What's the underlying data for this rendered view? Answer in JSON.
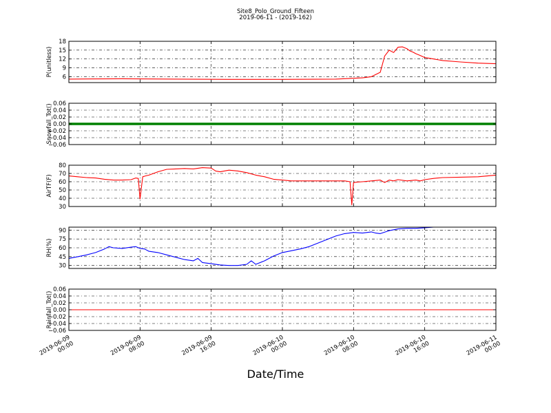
{
  "figure": {
    "title": "Site8_Polo_Ground_Fifteen",
    "subtitle": "2019-06-11 - (2019-162)",
    "xlabel": "Date/Time"
  },
  "chart_data": [
    {
      "type": "line",
      "ylabel": "P(unitless)",
      "ylim": [
        4,
        18
      ],
      "yticks": [
        "6",
        "9",
        "12",
        "15",
        "18"
      ],
      "ytick_values": [
        6,
        9,
        12,
        15,
        18
      ],
      "grid": true,
      "color": "#ff0000",
      "series": [
        {
          "x": [
            0,
            6,
            12,
            18,
            24,
            30,
            33,
            34,
            35,
            35.5,
            36,
            36.5,
            37,
            37.5,
            38,
            38.3,
            38.7,
            39,
            39.5,
            40,
            41,
            42,
            44,
            46,
            48
          ],
          "y": [
            5.2,
            5.3,
            5.2,
            5.1,
            5.1,
            5.2,
            5.6,
            6.0,
            7.5,
            13.0,
            15.0,
            14.2,
            16.0,
            16.1,
            15.5,
            14.8,
            14.3,
            13.8,
            13.2,
            12.5,
            12.0,
            11.5,
            11.0,
            10.6,
            10.4
          ]
        }
      ]
    },
    {
      "type": "line",
      "ylabel": "Snowfall_Tot()",
      "ylim": [
        -0.06,
        0.06
      ],
      "yticks": [
        "−0.06",
        "−0.04",
        "−0.02",
        "0.00",
        "0.02",
        "0.04",
        "0.06"
      ],
      "ytick_values": [
        -0.06,
        -0.04,
        -0.02,
        0,
        0.02,
        0.04,
        0.06
      ],
      "grid": true,
      "color": "#008000",
      "line_width": 3.5,
      "series": [
        {
          "x": [
            0,
            48
          ],
          "y": [
            0,
            0
          ]
        }
      ]
    },
    {
      "type": "line",
      "ylabel": "AirTF(F)",
      "ylim": [
        30,
        80
      ],
      "yticks": [
        "30",
        "40",
        "50",
        "60",
        "70",
        "80"
      ],
      "ytick_values": [
        30,
        40,
        50,
        60,
        70,
        80
      ],
      "grid": true,
      "color": "#ff0000",
      "series": [
        {
          "x": [
            0,
            1,
            2,
            3,
            4,
            5,
            6,
            7,
            7.5,
            7.8,
            8,
            8.3,
            8.6,
            9,
            10,
            11,
            12,
            13,
            14,
            15,
            16,
            16.5,
            17,
            18,
            19,
            20,
            21,
            22,
            23,
            24,
            25,
            26,
            27,
            28,
            29,
            30,
            31,
            31.6,
            31.8,
            32,
            32.4,
            33,
            34,
            35,
            35.5,
            36,
            36.5,
            37,
            38,
            39,
            39.5,
            40,
            41,
            42,
            44,
            46,
            48
          ],
          "y": [
            67,
            66,
            65,
            64.5,
            63,
            62,
            62,
            62.5,
            64.5,
            64,
            39,
            66,
            67,
            68,
            72,
            75,
            75.5,
            76,
            75.5,
            77,
            76.5,
            73,
            72,
            74,
            73,
            71,
            68,
            66,
            63,
            62,
            61,
            61,
            61,
            61,
            61,
            61,
            61,
            60,
            32,
            59,
            59.5,
            60,
            61,
            62,
            59,
            62,
            61,
            62.5,
            61,
            62,
            61,
            62.5,
            64,
            65,
            65.5,
            66,
            68
          ]
        }
      ]
    },
    {
      "type": "line",
      "ylabel": "RH(%)",
      "ylim": [
        25,
        95
      ],
      "yticks": [
        "30",
        "45",
        "60",
        "75",
        "90"
      ],
      "ytick_values": [
        30,
        45,
        60,
        75,
        90
      ],
      "grid": true,
      "color": "#0000ff",
      "series": [
        {
          "x": [
            0,
            1,
            2,
            3,
            4,
            4.5,
            5,
            6,
            7,
            7.5,
            8,
            8.5,
            9,
            10,
            11,
            12,
            13,
            14,
            14.5,
            15,
            16,
            17,
            18,
            19,
            20,
            20.5,
            21,
            22,
            23,
            24,
            25,
            26,
            27,
            28,
            29,
            30,
            31,
            32,
            33,
            34,
            34.5,
            35,
            36,
            37,
            38,
            39,
            40,
            41
          ],
          "y": [
            42,
            45,
            48,
            52,
            58,
            62,
            60,
            59,
            61,
            62,
            59,
            58,
            54,
            52,
            48,
            44,
            40,
            38,
            42,
            35,
            33,
            31,
            30,
            30,
            32,
            38,
            32,
            38,
            46,
            52,
            55,
            58,
            62,
            68,
            74,
            80,
            84,
            86,
            85,
            87,
            85,
            84,
            89,
            92,
            93,
            93,
            94,
            95
          ]
        }
      ]
    },
    {
      "type": "line",
      "ylabel": "Rainfall_Tot()",
      "ylim": [
        -0.06,
        0.06
      ],
      "yticks": [
        "−0.06",
        "−0.04",
        "−0.02",
        "0.00",
        "0.02",
        "0.04",
        "0.06"
      ],
      "ytick_values": [
        -0.06,
        -0.04,
        -0.02,
        0,
        0.02,
        0.04,
        0.06
      ],
      "grid": true,
      "color": "#ff0000",
      "series": [
        {
          "x": [
            0,
            48
          ],
          "y": [
            0,
            0
          ]
        }
      ]
    }
  ],
  "xaxis": {
    "range_hours": [
      0,
      48
    ],
    "tick_hours": [
      0,
      8,
      16,
      24,
      32,
      40,
      48
    ],
    "tick_labels": [
      [
        "2019-06-09",
        "00:00"
      ],
      [
        "2019-06-09",
        "08:00"
      ],
      [
        "2019-06-09",
        "16:00"
      ],
      [
        "2019-06-10",
        "00:00"
      ],
      [
        "2019-06-10",
        "08:00"
      ],
      [
        "2019-06-10",
        "16:00"
      ],
      [
        "2019-06-11",
        "00:00"
      ]
    ]
  }
}
